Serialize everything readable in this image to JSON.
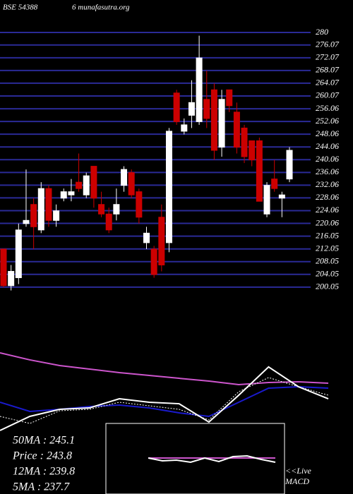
{
  "chart_data": [
    {
      "type": "candlestick",
      "title": "BSE 54388",
      "subtitle": "6  munafasutra.org",
      "up_color": "#ffffff",
      "down_color": "#cc0000",
      "grid_color": "#2a2a96",
      "ylim": [
        197.8,
        282
      ],
      "grid": true,
      "yticks": [
        280,
        276.07,
        272.07,
        268.07,
        264.07,
        260.07,
        256.06,
        252.06,
        248.06,
        244.06,
        240.06,
        236.06,
        232.06,
        228.06,
        224.06,
        220.06,
        216.05,
        212.05,
        208.05,
        204.05,
        200.05
      ],
      "open": [
        212,
        200.5,
        203,
        220,
        226,
        218,
        231,
        221,
        228,
        229,
        233,
        229,
        238,
        226,
        223,
        223,
        232,
        236,
        230,
        214,
        212,
        222,
        214,
        261,
        249,
        254,
        252,
        259,
        262,
        244,
        262,
        255,
        250,
        246,
        246,
        223,
        234,
        228,
        234
      ],
      "high": [
        212,
        207,
        220,
        237,
        228,
        233,
        232,
        226,
        231,
        234,
        242,
        236,
        238,
        230,
        225,
        231,
        238,
        237,
        231,
        219,
        213,
        226,
        250,
        262,
        253,
        265,
        279,
        268,
        264,
        262,
        262,
        258,
        251,
        246,
        247,
        233,
        240,
        230,
        244
      ],
      "low": [
        200,
        199,
        201,
        219,
        212,
        217,
        219,
        219,
        227,
        227,
        230,
        228,
        225,
        222,
        217,
        221,
        230,
        228,
        220,
        212,
        203,
        205,
        211,
        251,
        248,
        250,
        251,
        250,
        240,
        241,
        255,
        242,
        239,
        238,
        227,
        222,
        230,
        222,
        233
      ],
      "close": [
        200.5,
        205,
        218,
        221,
        219,
        231,
        221,
        224,
        230,
        230,
        231,
        235,
        228,
        223,
        218,
        226,
        237,
        229,
        222,
        217,
        204,
        207,
        249,
        252,
        251,
        258,
        272,
        253,
        243,
        259,
        257,
        244,
        241,
        240,
        227,
        232,
        231,
        229,
        243
      ]
    },
    {
      "type": "line",
      "ylim": [
        0,
        100
      ],
      "legend_texts": [
        "50MA : 245.1",
        "Price : 243.8",
        "12MA : 239.8",
        "5MA : 237.7"
      ],
      "series": [
        {
          "color": "#cc55cc",
          "values": [
            95.7,
            87,
            80,
            75.7,
            71.3,
            67.8,
            64.3,
            60.9,
            56.5,
            59.1,
            60,
            58.3
          ]
        },
        {
          "color": "#1a1acc",
          "values": [
            34.8,
            23.5,
            26.1,
            29.6,
            31.3,
            27.8,
            21.7,
            17.4,
            34.8,
            52.2,
            53.9,
            52.2
          ]
        },
        {
          "color": "#ffffff",
          "values": [
            0,
            17.4,
            26.1,
            27.8,
            39.1,
            34.8,
            33,
            10.4,
            43.5,
            78.3,
            53.9,
            39.1
          ]
        },
        {
          "color": "#ffffff",
          "dashed": true,
          "values": [
            17.4,
            8.7,
            24.3,
            26.1,
            34.8,
            30.4,
            26.1,
            13,
            47.8,
            65.2,
            53.9,
            43.5
          ]
        }
      ]
    },
    {
      "type": "line",
      "ylim": [
        0,
        100
      ],
      "note_texts": [
        "<<Live",
        "MACD"
      ],
      "series": [
        {
          "color": "#cc55cc",
          "values": [
            51,
            51,
            51,
            51,
            51,
            51,
            51,
            51,
            51,
            51
          ]
        },
        {
          "color": "#ffffff",
          "values": [
            51,
            47,
            48,
            45,
            51,
            46,
            53,
            54,
            49,
            45
          ]
        }
      ]
    }
  ]
}
